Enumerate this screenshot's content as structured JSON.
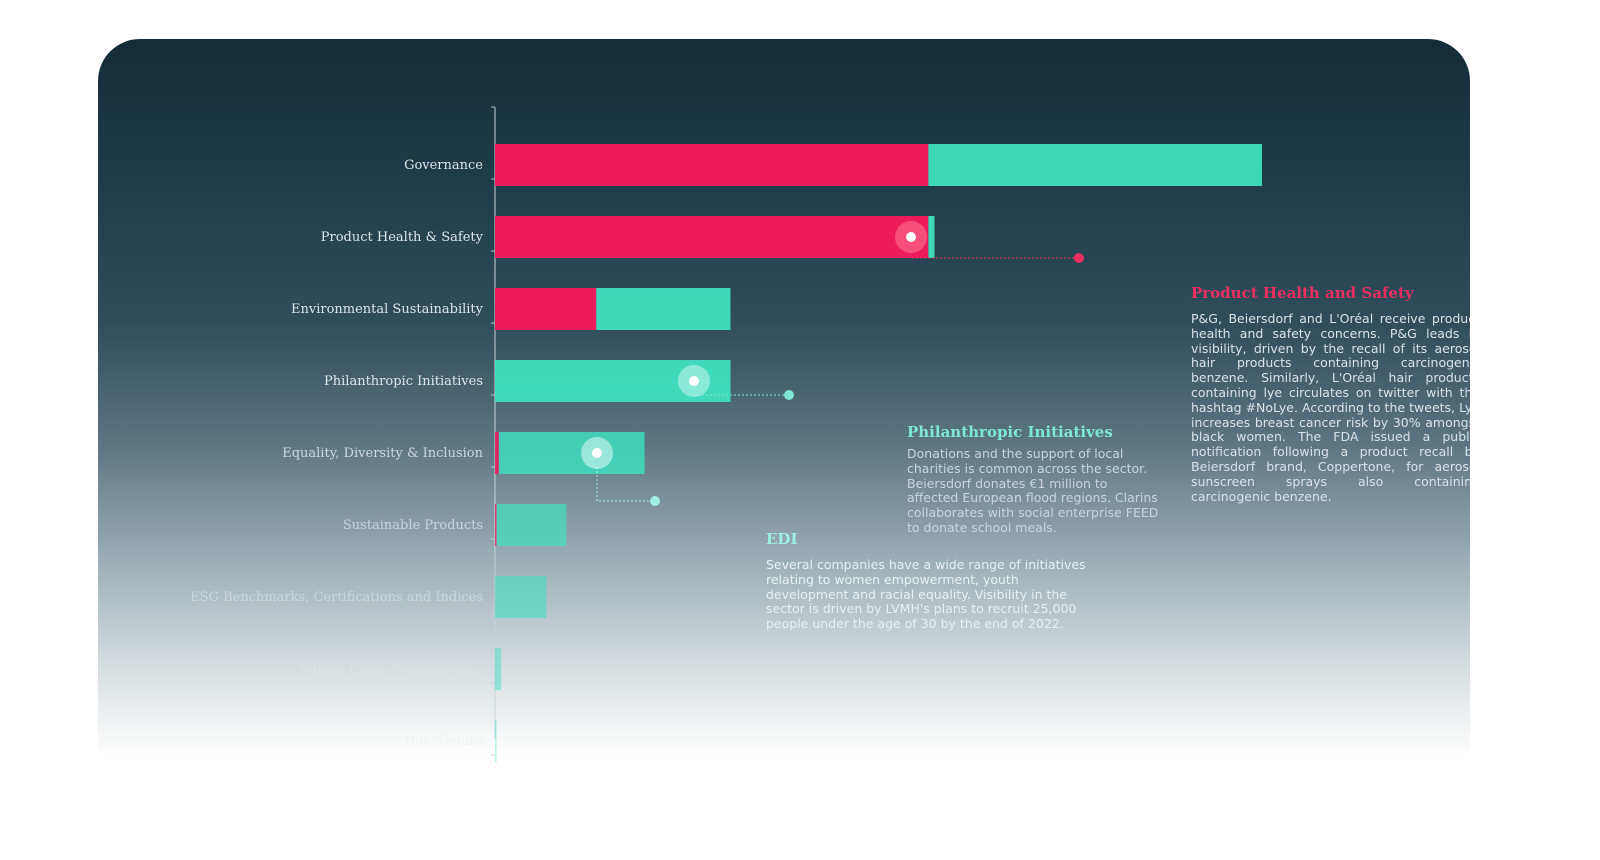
{
  "chart_data": {
    "type": "bar",
    "orientation": "horizontal",
    "stacked": true,
    "categories": [
      "Governance",
      "Product Health & Safety",
      "Environmental Sustainability",
      "Philanthropic Initiatives",
      "Equality, Diversity & Inclusion",
      "Sustainable Products",
      "ESG Benchmarks, Certifications and Indices",
      "Supply Chain Transparency",
      "Gov. Tenure"
    ],
    "series": [
      {
        "color": "#ec1b5b",
        "values": [
          56.5,
          56.5,
          13.2,
          0,
          0.5,
          0.2,
          0,
          0,
          0
        ]
      },
      {
        "color": "#40e0c0",
        "values": [
          43.5,
          0.8,
          17.5,
          30.7,
          19.0,
          9.1,
          6.7,
          0.8,
          0.2
        ]
      }
    ],
    "xlim": [
      0,
      100
    ],
    "grid": false,
    "annotations": [
      {
        "id": "phs",
        "category": "Product Health & Safety",
        "title": "Product Health and Safety",
        "color": "#ec2f60",
        "body": "P&G, Beiersdorf and L'Oréal receive product health and safety concerns. P&G leads in visibility, driven by the recall of its aerosol hair products containing carcinogenic benzene. Similarly, L'Oréal hair products containing lye circulates on twitter with the hashtag #NoLye. According to the tweets, Lye increases breast cancer risk by 30% amongst black women. The FDA issued a public notification following a product recall by Beiersdorf brand, Coppertone, for aerosol sunscreen sprays also containing carcinogenic benzene."
      },
      {
        "id": "phil",
        "category": "Philanthropic Initiatives",
        "title": "Philanthropic Initiatives",
        "color": "#7fe8d4",
        "body": "Donations and the support of local charities is common across the sector. Beiersdorf donates €1 million to affected European flood regions. Clarins collaborates with social enterprise FEED to donate school meals."
      },
      {
        "id": "edi",
        "category": "Equality, Diversity & Inclusion",
        "title": "EDI",
        "color": "#9ff0e1",
        "body": "Several companies have a wide range of initiatives relating to women empowerment, youth development and racial equality. Visibility in the sector is driven by LVMH's plans to recruit 25,000 people under the age of 30 by the end of 2022."
      }
    ]
  }
}
